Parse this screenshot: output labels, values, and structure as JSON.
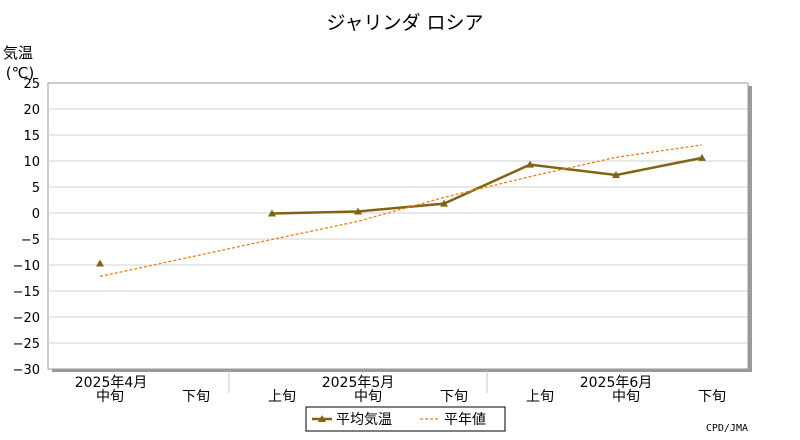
{
  "chart_data": {
    "type": "line",
    "title": "ジャリンダ ロシア",
    "ylabel": "気温",
    "yunit": "(℃)",
    "ylim": [
      -30,
      25
    ],
    "yticks": [
      25,
      20,
      15,
      10,
      5,
      0,
      -5,
      -10,
      -15,
      -20,
      -25,
      -30
    ],
    "grid": true,
    "categories": [
      "中旬",
      "下旬",
      "上旬",
      "中旬",
      "下旬",
      "上旬",
      "中旬",
      "下旬"
    ],
    "month_groups": [
      {
        "label": "2025年4月",
        "start": 0,
        "end": 1
      },
      {
        "label": "2025年5月",
        "start": 2,
        "end": 4
      },
      {
        "label": "2025年6月",
        "start": 5,
        "end": 7
      }
    ],
    "series": [
      {
        "name": "平均気温",
        "color": "#806414",
        "style": "solid-marker",
        "values": [
          -9.7,
          null,
          -0.1,
          0.3,
          1.8,
          9.3,
          7.3,
          10.6
        ]
      },
      {
        "name": "平年値",
        "color": "#ef7d1a",
        "style": "dashed",
        "values": [
          -12.2,
          null,
          -5.1,
          -1.6,
          3.0,
          7.0,
          10.7,
          13.1
        ]
      }
    ],
    "legend_position": "bottom-center",
    "credit": "CPD/JMA"
  }
}
